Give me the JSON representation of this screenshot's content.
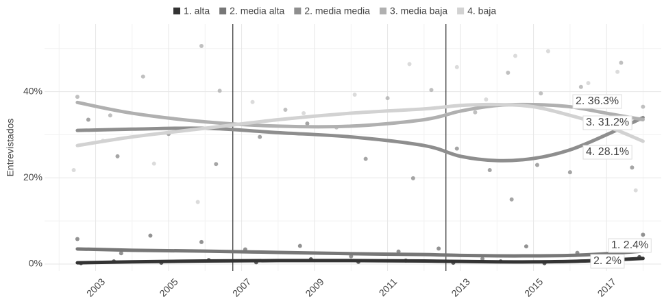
{
  "chart_data": {
    "type": "line",
    "y_label": "Entrevistados",
    "xlim": [
      2001.6,
      2018.5
    ],
    "xticks": [
      2003,
      2005,
      2007,
      2009,
      2011,
      2013,
      2015,
      2017
    ],
    "xminor": [
      2002,
      2004,
      2006,
      2008,
      2010,
      2012,
      2014,
      2016,
      2018
    ],
    "ylim": [
      -1.6,
      55.7
    ],
    "yticks": [
      {
        "value": 0,
        "label": "0%"
      },
      {
        "value": 20,
        "label": "20%"
      },
      {
        "value": 40,
        "label": "40%"
      }
    ],
    "yminor": [
      10,
      30,
      50
    ],
    "grid": true,
    "vlines": [
      2006.76,
      2012.6
    ],
    "x": [
      2002.5,
      2004,
      2006,
      2008,
      2010,
      2012,
      2013,
      2014,
      2015,
      2016,
      2017,
      2018
    ],
    "series": [
      {
        "name": "1. alta",
        "color": "#333333",
        "values": [
          0.3,
          0.5,
          0.7,
          0.8,
          0.8,
          0.7,
          0.6,
          0.5,
          0.5,
          0.6,
          0.9,
          1.3
        ],
        "points": {
          "x": [
            2002.6,
            2003.5,
            2004.8,
            2006.1,
            2007.4,
            2008.9,
            2010.2,
            2011.5,
            2012.8,
            2014.1,
            2015.3,
            2016.6,
            2017.9
          ],
          "values": [
            0.2,
            0.6,
            0.3,
            0.9,
            0.4,
            1.1,
            0.5,
            0.8,
            0.3,
            0.6,
            0.2,
            0.9,
            1.6
          ]
        }
      },
      {
        "name": "2. media alta",
        "color": "#777777",
        "values": [
          3.5,
          3.2,
          3.0,
          2.7,
          2.4,
          2.2,
          2.0,
          1.9,
          1.9,
          2.0,
          2.4,
          3.0
        ],
        "points": {
          "x": [
            2002.5,
            2003.7,
            2004.5,
            2005.9,
            2007.1,
            2008.6,
            2010.0,
            2011.3,
            2012.4,
            2013.6,
            2014.8,
            2016.2,
            2017.6,
            2018.0
          ],
          "values": [
            5.8,
            2.5,
            6.6,
            5.1,
            3.4,
            4.2,
            1.8,
            2.9,
            3.6,
            1.2,
            4.1,
            2.6,
            4.4,
            6.8
          ]
        }
      },
      {
        "name": "2. media media",
        "color": "#8e8e8e",
        "values": [
          31.0,
          31.3,
          31.5,
          30.5,
          29.5,
          27.5,
          25.0,
          24.0,
          24.5,
          26.5,
          30.0,
          34.0
        ],
        "points": {
          "x": [
            2002.8,
            2003.6,
            2005.0,
            2006.3,
            2007.5,
            2008.8,
            2010.4,
            2011.7,
            2012.9,
            2013.8,
            2014.4,
            2015.1,
            2016.0,
            2016.9,
            2017.7
          ],
          "values": [
            33.5,
            25.0,
            30.2,
            23.2,
            29.5,
            32.6,
            24.4,
            19.9,
            26.8,
            21.8,
            15.0,
            23.0,
            21.3,
            33.0,
            22.4
          ]
        }
      },
      {
        "name": "3. media baja",
        "color": "#b0b0b0",
        "values": [
          37.5,
          35.0,
          33.0,
          32.0,
          32.0,
          33.5,
          35.5,
          36.8,
          37.0,
          36.5,
          35.0,
          33.5
        ],
        "points": {
          "x": [
            2002.5,
            2003.4,
            2004.3,
            2005.9,
            2006.4,
            2008.2,
            2009.6,
            2011.0,
            2012.2,
            2013.4,
            2014.3,
            2015.2,
            2016.3,
            2017.4,
            2018.0
          ],
          "values": [
            38.8,
            34.5,
            43.5,
            50.6,
            40.2,
            35.8,
            31.7,
            38.5,
            40.4,
            35.2,
            44.4,
            39.6,
            41.1,
            46.7,
            36.5
          ]
        }
      },
      {
        "name": "4. baja",
        "color": "#d2d2d2",
        "values": [
          27.5,
          29.5,
          31.5,
          33.5,
          35.0,
          36.0,
          36.8,
          37.0,
          36.5,
          34.5,
          32.0,
          28.5
        ],
        "points": {
          "x": [
            2002.4,
            2003.2,
            2004.6,
            2005.8,
            2007.3,
            2008.7,
            2010.1,
            2011.6,
            2012.9,
            2013.7,
            2014.5,
            2015.4,
            2016.5,
            2017.3,
            2017.8
          ],
          "values": [
            21.8,
            28.6,
            23.3,
            14.4,
            37.6,
            35.0,
            39.3,
            46.4,
            45.7,
            38.2,
            48.3,
            49.4,
            42.0,
            44.6,
            17.1
          ]
        }
      }
    ],
    "end_labels": [
      "2.   36.3%",
      "3.   31.2%",
      "4.   28.1%",
      "1.   2.4%",
      "2.   2%"
    ]
  }
}
